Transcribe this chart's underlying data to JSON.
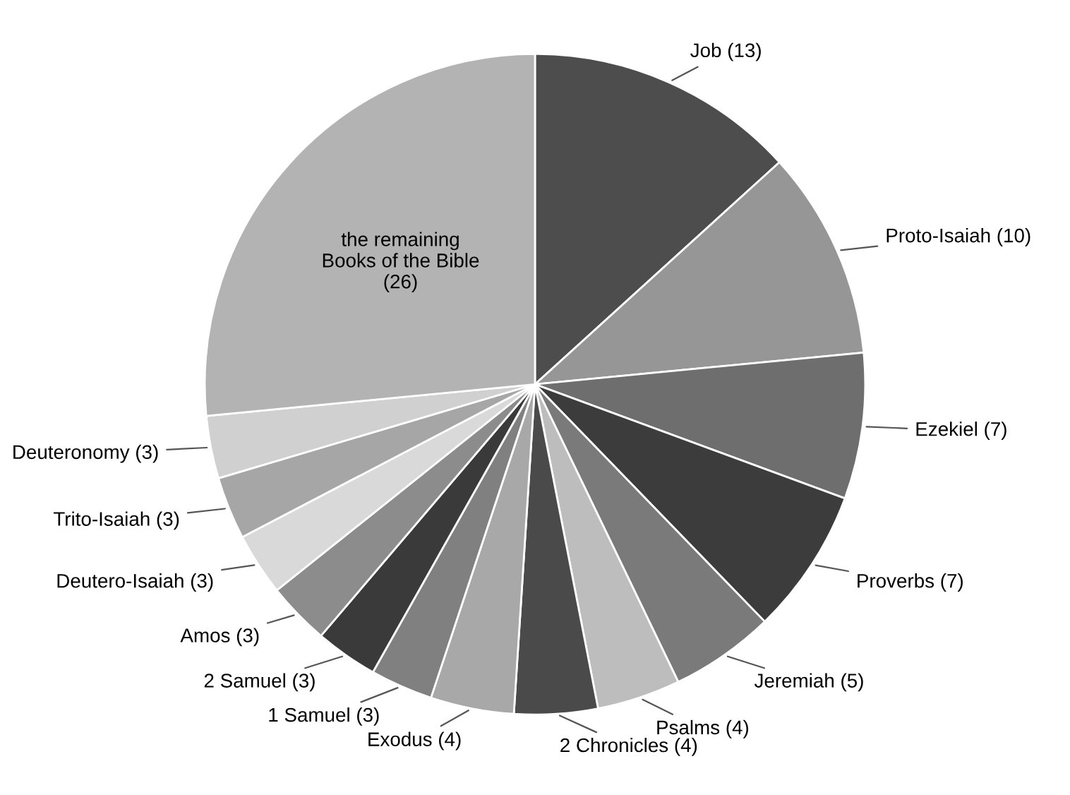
{
  "chart_data": {
    "type": "pie",
    "categories": [
      "Job (13)",
      "Proto-Isaiah (10)",
      "Ezekiel (7)",
      "Proverbs (7)",
      "Jeremiah (5)",
      "Psalms (4)",
      "2 Chronicles (4)",
      "Exodus (4)",
      "1 Samuel (3)",
      "2 Samuel (3)",
      "Amos (3)",
      "Deutero-Isaiah (3)",
      "Trito-Isaiah (3)",
      "Deuteronomy (3)",
      null
    ],
    "values": [
      13,
      10,
      7,
      7,
      5,
      4,
      4,
      4,
      3,
      3,
      3,
      3,
      3,
      3,
      26
    ],
    "colors": [
      "#4d4d4d",
      "#969696",
      "#6e6e6e",
      "#3c3c3c",
      "#7a7a7a",
      "#bdbdbd",
      "#4a4a4a",
      "#a8a8a8",
      "#808080",
      "#3a3a3a",
      "#8c8c8c",
      "#d9d9d9",
      "#a6a6a6",
      "#d0d0d0",
      "#b3b3b3"
    ],
    "annotations": [
      "the remaining\nBooks of the Bible\n(26)"
    ]
  }
}
